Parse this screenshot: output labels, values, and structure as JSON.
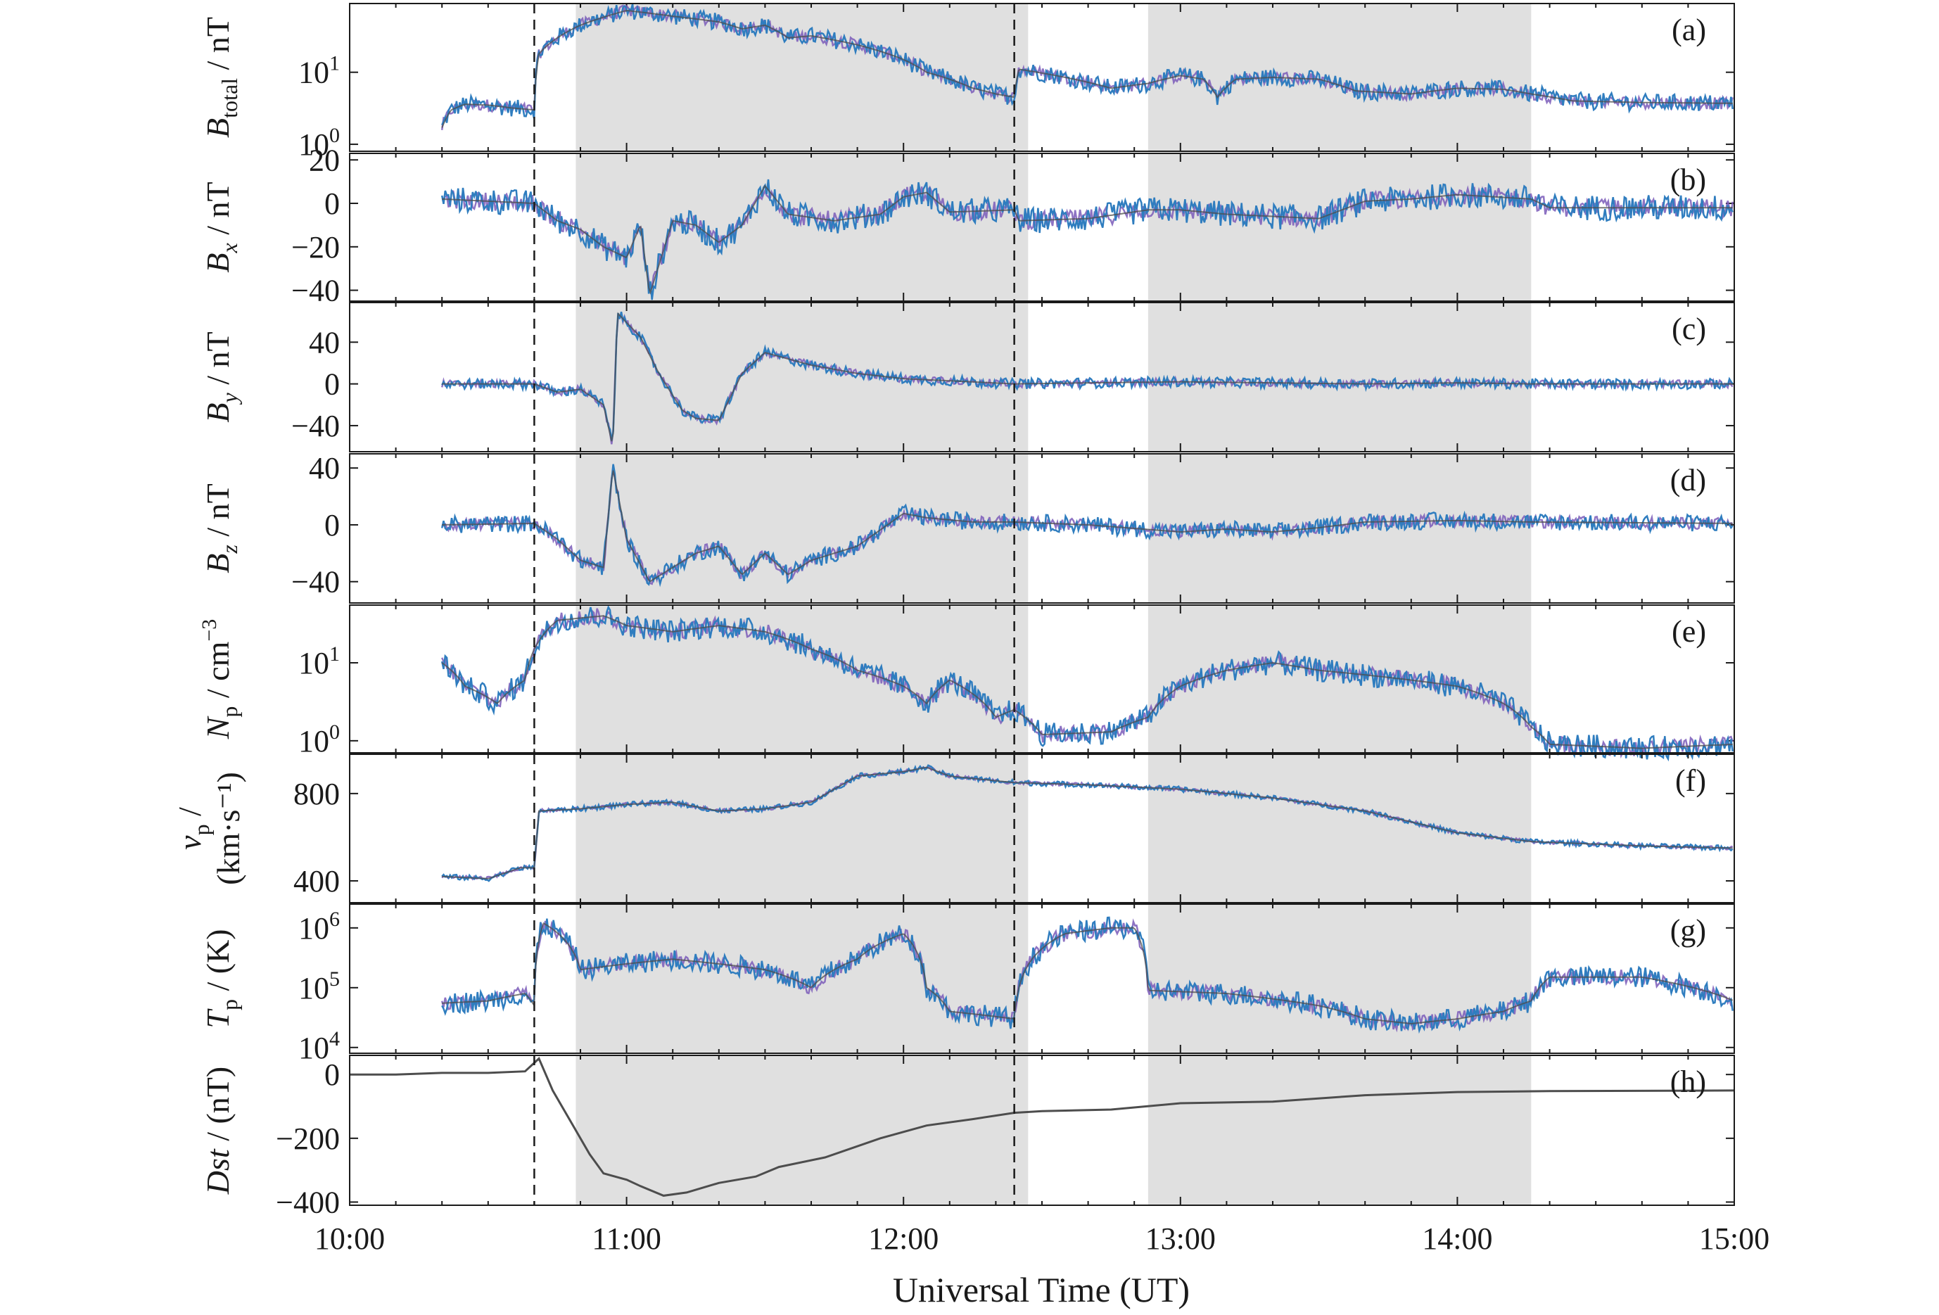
{
  "chart_data": {
    "type": "line",
    "xlabel": "Universal Time (UT)",
    "xlim": [
      "10:00",
      "15:00"
    ],
    "xticks": [
      "10:00",
      "11:00",
      "12:00",
      "13:00",
      "14:00",
      "15:00"
    ],
    "event_lines": [
      "10:40",
      "12:24"
    ],
    "shaded_intervals": [
      [
        "10:49",
        "12:27"
      ],
      [
        "12:53",
        "14:16"
      ]
    ],
    "colors": {
      "obs": "#2f7dbf",
      "model": "#7a5ab8",
      "series": "#4d4d4d",
      "shade": "#e0e0e0"
    },
    "panels": [
      {
        "id": "a",
        "label": "(a)",
        "ylabel": "B",
        "ylabel_sub": "total",
        "ylabel_unit": " / nT",
        "scale": "log",
        "ylim": [
          0.8,
          90
        ],
        "yticks": [
          1,
          10
        ],
        "ytick_labels": [
          {
            "base": "10",
            "exp": "0"
          },
          {
            "base": "10",
            "exp": "1"
          }
        ],
        "data": [
          [
            "10:20",
            1.7
          ],
          [
            "10:22",
            3.0
          ],
          [
            "10:25",
            3.6
          ],
          [
            "10:30",
            3.5
          ],
          [
            "10:35",
            3.2
          ],
          [
            "10:40",
            3.0
          ],
          [
            "10:41",
            18
          ],
          [
            "10:45",
            30
          ],
          [
            "10:50",
            45
          ],
          [
            "10:55",
            58
          ],
          [
            "11:00",
            72
          ],
          [
            "11:10",
            60
          ],
          [
            "11:20",
            50
          ],
          [
            "11:25",
            40
          ],
          [
            "11:30",
            45
          ],
          [
            "11:35",
            30
          ],
          [
            "11:40",
            32
          ],
          [
            "11:50",
            24
          ],
          [
            "12:00",
            15
          ],
          [
            "12:05",
            10
          ],
          [
            "12:10",
            8
          ],
          [
            "12:15",
            6
          ],
          [
            "12:20",
            5
          ],
          [
            "12:24",
            4.5
          ],
          [
            "12:25",
            11
          ],
          [
            "12:35",
            8.5
          ],
          [
            "12:45",
            6
          ],
          [
            "12:53",
            7
          ],
          [
            "13:00",
            9
          ],
          [
            "13:05",
            8
          ],
          [
            "13:08",
            4.5
          ],
          [
            "13:12",
            8
          ],
          [
            "13:20",
            8.5
          ],
          [
            "13:30",
            8
          ],
          [
            "13:38",
            5.5
          ],
          [
            "13:50",
            5
          ],
          [
            "14:00",
            6
          ],
          [
            "14:10",
            5.8
          ],
          [
            "14:16",
            5
          ],
          [
            "14:25",
            4
          ],
          [
            "14:40",
            3.8
          ],
          [
            "15:00",
            3.7
          ]
        ],
        "noise": 0.12
      },
      {
        "id": "b",
        "label": "(b)",
        "ylabel": "B",
        "ylabel_sub": "x",
        "ylabel_unit": " / nT",
        "scale": "linear",
        "ylim": [
          -45,
          23
        ],
        "yticks": [
          -40,
          -20,
          0,
          20
        ],
        "ytick_labels": [
          "−40",
          "−20",
          "0",
          "20"
        ],
        "data": [
          [
            "10:20",
            2
          ],
          [
            "10:30",
            1
          ],
          [
            "10:40",
            0
          ],
          [
            "10:45",
            -8
          ],
          [
            "10:50",
            -12
          ],
          [
            "10:55",
            -20
          ],
          [
            "11:00",
            -25
          ],
          [
            "11:03",
            -10
          ],
          [
            "11:05",
            -42
          ],
          [
            "11:10",
            -8
          ],
          [
            "11:15",
            -10
          ],
          [
            "11:20",
            -18
          ],
          [
            "11:25",
            -10
          ],
          [
            "11:30",
            8
          ],
          [
            "11:35",
            -5
          ],
          [
            "11:45",
            -8
          ],
          [
            "11:55",
            -5
          ],
          [
            "12:00",
            3
          ],
          [
            "12:05",
            5
          ],
          [
            "12:10",
            -4
          ],
          [
            "12:24",
            -3
          ],
          [
            "12:25",
            -8
          ],
          [
            "12:40",
            -7
          ],
          [
            "12:53",
            -3
          ],
          [
            "13:00",
            -3
          ],
          [
            "13:10",
            -5
          ],
          [
            "13:20",
            -6
          ],
          [
            "13:30",
            -7
          ],
          [
            "13:40",
            1
          ],
          [
            "13:50",
            2
          ],
          [
            "14:00",
            4
          ],
          [
            "14:16",
            2
          ],
          [
            "14:20",
            -2
          ],
          [
            "15:00",
            -2
          ]
        ],
        "noise": 6
      },
      {
        "id": "c",
        "label": "(c)",
        "ylabel": "B",
        "ylabel_sub": "y",
        "ylabel_unit": " / nT",
        "scale": "linear",
        "ylim": [
          -65,
          78
        ],
        "yticks": [
          -40,
          0,
          40
        ],
        "ytick_labels": [
          "−40",
          "0",
          "40"
        ],
        "data": [
          [
            "10:20",
            0
          ],
          [
            "10:40",
            0
          ],
          [
            "10:45",
            -8
          ],
          [
            "10:50",
            -5
          ],
          [
            "10:55",
            -20
          ],
          [
            "10:57",
            -60
          ],
          [
            "10:58",
            68
          ],
          [
            "11:03",
            45
          ],
          [
            "11:07",
            10
          ],
          [
            "11:12",
            -25
          ],
          [
            "11:15",
            -33
          ],
          [
            "11:20",
            -35
          ],
          [
            "11:25",
            10
          ],
          [
            "11:30",
            30
          ],
          [
            "11:40",
            18
          ],
          [
            "11:50",
            10
          ],
          [
            "12:00",
            5
          ],
          [
            "12:10",
            3
          ],
          [
            "12:24",
            0
          ],
          [
            "12:40",
            1
          ],
          [
            "13:00",
            2
          ],
          [
            "13:20",
            1
          ],
          [
            "13:40",
            0
          ],
          [
            "14:00",
            1
          ],
          [
            "14:16",
            0
          ],
          [
            "15:00",
            0
          ]
        ],
        "noise": 5
      },
      {
        "id": "d",
        "label": "(d)",
        "ylabel": "B",
        "ylabel_sub": "z",
        "ylabel_unit": " / nT",
        "scale": "linear",
        "ylim": [
          -55,
          50
        ],
        "yticks": [
          -40,
          0,
          40
        ],
        "ytick_labels": [
          "−40",
          "0",
          "40"
        ],
        "data": [
          [
            "10:20",
            0
          ],
          [
            "10:40",
            1
          ],
          [
            "10:45",
            -10
          ],
          [
            "10:50",
            -25
          ],
          [
            "10:55",
            -30
          ],
          [
            "10:57",
            40
          ],
          [
            "11:00",
            -10
          ],
          [
            "11:05",
            -40
          ],
          [
            "11:10",
            -30
          ],
          [
            "11:15",
            -20
          ],
          [
            "11:20",
            -15
          ],
          [
            "11:25",
            -35
          ],
          [
            "11:30",
            -20
          ],
          [
            "11:35",
            -35
          ],
          [
            "11:40",
            -25
          ],
          [
            "11:50",
            -15
          ],
          [
            "12:00",
            8
          ],
          [
            "12:05",
            5
          ],
          [
            "12:15",
            2
          ],
          [
            "12:24",
            2
          ],
          [
            "12:40",
            0
          ],
          [
            "13:00",
            -5
          ],
          [
            "13:10",
            -3
          ],
          [
            "13:20",
            -5
          ],
          [
            "13:30",
            -2
          ],
          [
            "13:40",
            2
          ],
          [
            "14:00",
            3
          ],
          [
            "14:16",
            2
          ],
          [
            "15:00",
            1
          ]
        ],
        "noise": 6
      },
      {
        "id": "e",
        "label": "(e)",
        "ylabel": "N",
        "ylabel_sub": "p",
        "ylabel_unit": " / cm",
        "ylabel_sup": "−3",
        "scale": "log",
        "ylim": [
          0.7,
          55
        ],
        "yticks": [
          1,
          10
        ],
        "ytick_labels": [
          {
            "base": "10",
            "exp": "0"
          },
          {
            "base": "10",
            "exp": "1"
          }
        ],
        "data": [
          [
            "10:20",
            10
          ],
          [
            "10:25",
            5
          ],
          [
            "10:32",
            3
          ],
          [
            "10:38",
            6
          ],
          [
            "10:40",
            15
          ],
          [
            "10:45",
            35
          ],
          [
            "10:55",
            40
          ],
          [
            "11:00",
            30
          ],
          [
            "11:10",
            25
          ],
          [
            "11:20",
            30
          ],
          [
            "11:30",
            25
          ],
          [
            "11:40",
            15
          ],
          [
            "11:50",
            8
          ],
          [
            "12:00",
            5
          ],
          [
            "12:05",
            3
          ],
          [
            "12:10",
            6
          ],
          [
            "12:15",
            4
          ],
          [
            "12:20",
            2
          ],
          [
            "12:24",
            2.5
          ],
          [
            "12:30",
            1.2
          ],
          [
            "12:45",
            1.3
          ],
          [
            "12:53",
            2
          ],
          [
            "13:00",
            5
          ],
          [
            "13:10",
            8
          ],
          [
            "13:20",
            10
          ],
          [
            "13:30",
            8
          ],
          [
            "13:40",
            7
          ],
          [
            "13:50",
            6
          ],
          [
            "14:00",
            5
          ],
          [
            "14:10",
            3
          ],
          [
            "14:16",
            1.5
          ],
          [
            "14:20",
            0.9
          ],
          [
            "14:40",
            0.8
          ],
          [
            "15:00",
            0.9
          ]
        ],
        "noise": 0.15
      },
      {
        "id": "f",
        "label": "(f)",
        "ylabel": "v",
        "ylabel_sub": "p",
        "ylabel_unit": " /",
        "ylabel_line2": "(km·s⁻¹)",
        "scale": "linear",
        "ylim": [
          300,
          980
        ],
        "yticks": [
          400,
          800
        ],
        "ytick_labels": [
          "400",
          "800"
        ],
        "data": [
          [
            "10:20",
            420
          ],
          [
            "10:30",
            410
          ],
          [
            "10:37",
            460
          ],
          [
            "10:40",
            460
          ],
          [
            "10:41",
            720
          ],
          [
            "10:50",
            730
          ],
          [
            "11:00",
            750
          ],
          [
            "11:10",
            760
          ],
          [
            "11:20",
            720
          ],
          [
            "11:30",
            730
          ],
          [
            "11:40",
            760
          ],
          [
            "11:50",
            880
          ],
          [
            "12:00",
            900
          ],
          [
            "12:05",
            920
          ],
          [
            "12:10",
            880
          ],
          [
            "12:24",
            850
          ],
          [
            "12:40",
            840
          ],
          [
            "13:00",
            820
          ],
          [
            "13:20",
            780
          ],
          [
            "13:40",
            720
          ],
          [
            "14:00",
            620
          ],
          [
            "14:16",
            580
          ],
          [
            "14:40",
            560
          ],
          [
            "15:00",
            550
          ]
        ],
        "noise": 12
      },
      {
        "id": "g",
        "label": "(g)",
        "ylabel": "T",
        "ylabel_sub": "p",
        "ylabel_unit": " / (K)",
        "scale": "log",
        "ylim": [
          8000,
          2500000
        ],
        "yticks": [
          10000,
          100000,
          1000000
        ],
        "ytick_labels": [
          {
            "base": "10",
            "exp": "4"
          },
          {
            "base": "10",
            "exp": "5"
          },
          {
            "base": "10",
            "exp": "6"
          }
        ],
        "data": [
          [
            "10:20",
            55000
          ],
          [
            "10:30",
            60000
          ],
          [
            "10:38",
            80000
          ],
          [
            "10:40",
            50000
          ],
          [
            "10:42",
            1200000
          ],
          [
            "10:50",
            200000
          ],
          [
            "11:00",
            250000
          ],
          [
            "11:10",
            300000
          ],
          [
            "11:20",
            250000
          ],
          [
            "11:30",
            200000
          ],
          [
            "11:40",
            100000
          ],
          [
            "11:50",
            300000
          ],
          [
            "12:00",
            800000
          ],
          [
            "12:05",
            100000
          ],
          [
            "12:10",
            40000
          ],
          [
            "12:24",
            30000
          ],
          [
            "12:25",
            100000
          ],
          [
            "12:35",
            800000
          ],
          [
            "12:45",
            1000000
          ],
          [
            "12:50",
            1000000
          ],
          [
            "12:53",
            90000
          ],
          [
            "13:10",
            80000
          ],
          [
            "13:30",
            50000
          ],
          [
            "13:40",
            30000
          ],
          [
            "13:50",
            25000
          ],
          [
            "14:00",
            30000
          ],
          [
            "14:10",
            40000
          ],
          [
            "14:16",
            60000
          ],
          [
            "14:20",
            150000
          ],
          [
            "14:40",
            150000
          ],
          [
            "15:00",
            60000
          ]
        ],
        "noise": 0.18
      },
      {
        "id": "h",
        "label": "(h)",
        "ylabel": "Dst",
        "ylabel_unit": " / (nT)",
        "ylabel_italic_main": true,
        "scale": "linear",
        "ylim": [
          -410,
          60
        ],
        "yticks": [
          -400,
          -200,
          0
        ],
        "ytick_labels": [
          "−400",
          "−200",
          "0"
        ],
        "data": [
          [
            "10:00",
            0
          ],
          [
            "10:10",
            0
          ],
          [
            "10:20",
            5
          ],
          [
            "10:30",
            5
          ],
          [
            "10:38",
            10
          ],
          [
            "10:41",
            50
          ],
          [
            "10:44",
            -50
          ],
          [
            "10:48",
            -150
          ],
          [
            "10:52",
            -250
          ],
          [
            "10:55",
            -310
          ],
          [
            "11:00",
            -330
          ],
          [
            "11:03",
            -350
          ],
          [
            "11:08",
            -380
          ],
          [
            "11:13",
            -370
          ],
          [
            "11:20",
            -340
          ],
          [
            "11:28",
            -320
          ],
          [
            "11:33",
            -290
          ],
          [
            "11:43",
            -260
          ],
          [
            "11:55",
            -200
          ],
          [
            "12:05",
            -160
          ],
          [
            "12:15",
            -140
          ],
          [
            "12:24",
            -120
          ],
          [
            "12:30",
            -115
          ],
          [
            "12:45",
            -110
          ],
          [
            "13:00",
            -90
          ],
          [
            "13:20",
            -85
          ],
          [
            "13:40",
            -65
          ],
          [
            "14:00",
            -55
          ],
          [
            "14:20",
            -52
          ],
          [
            "15:00",
            -50
          ]
        ],
        "noise": 0,
        "single": true
      }
    ]
  }
}
